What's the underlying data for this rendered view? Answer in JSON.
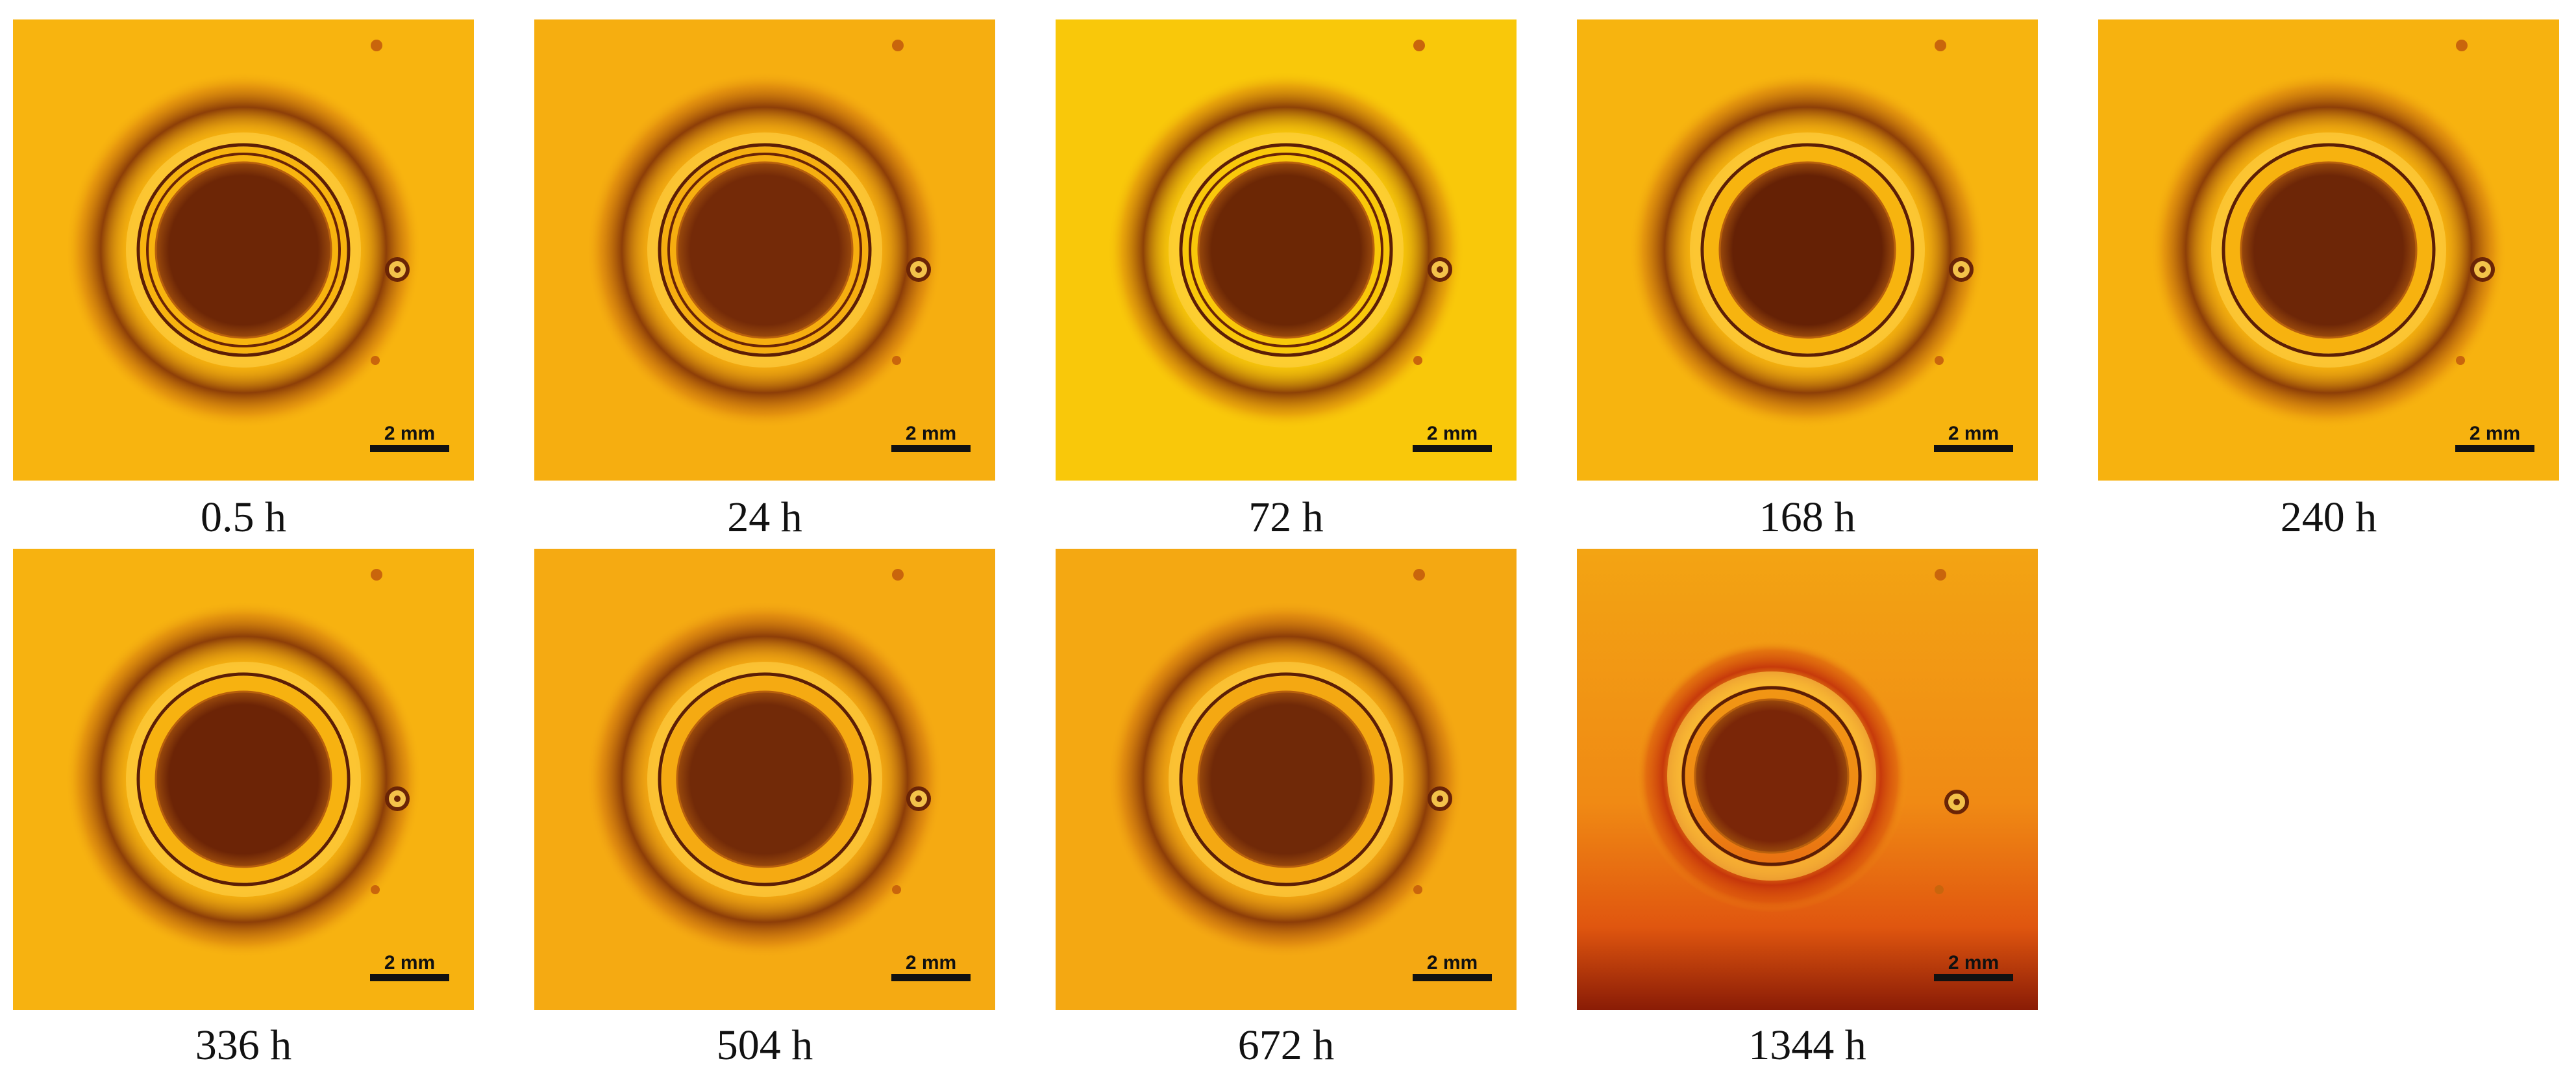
{
  "scale_bar_label": "2 mm",
  "panels": [
    {
      "label": "0.5 h",
      "bg": "#f8b40f",
      "dark": "#6d2606",
      "ring": "#d47a0c"
    },
    {
      "label": "24 h",
      "bg": "#f6ae10",
      "dark": "#742a08",
      "ring": "#d0740c"
    },
    {
      "label": "72 h",
      "bg": "#f9c80a",
      "dark": "#6c2705",
      "ring": "#d6800b"
    },
    {
      "label": "168 h",
      "bg": "#f7b40f",
      "dark": "#652105",
      "ring": "#d0760c"
    },
    {
      "label": "240 h",
      "bg": "#f7b20f",
      "dark": "#6d2607",
      "ring": "#d1760c"
    },
    {
      "label": "336 h",
      "bg": "#f7b210",
      "dark": "#6c2406",
      "ring": "#d0750c"
    },
    {
      "label": "504 h",
      "bg": "#f5aa12",
      "dark": "#722a08",
      "ring": "#cf710d"
    },
    {
      "label": "672 h",
      "bg": "#f4a812",
      "dark": "#702908",
      "ring": "#ce700d"
    },
    {
      "label": "1344 h",
      "bg": "#f3a413",
      "dark": "#7a2608",
      "ring": "#d54d0a"
    }
  ]
}
